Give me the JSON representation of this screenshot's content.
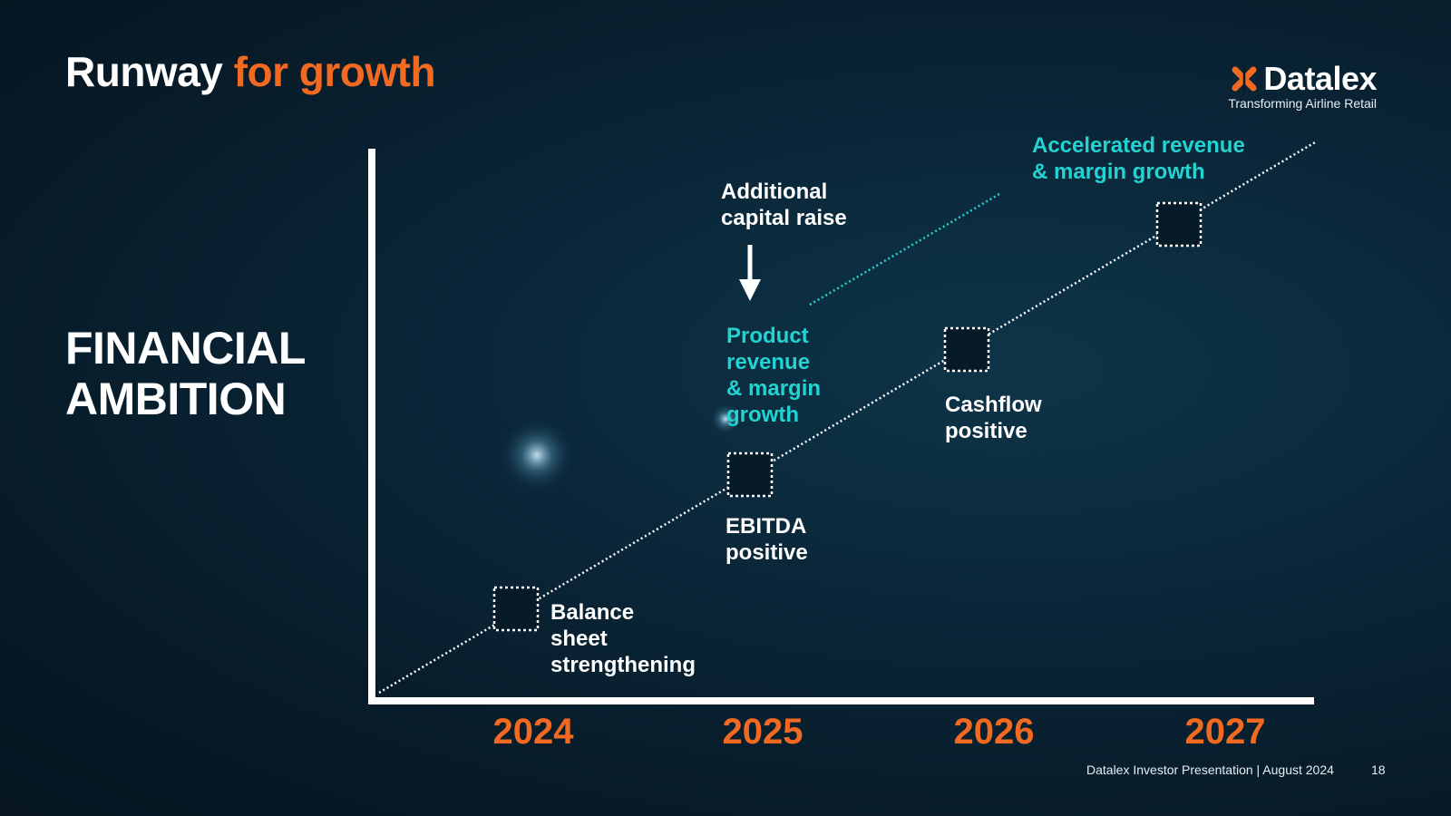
{
  "header": {
    "title_main": "Runway",
    "title_accent": "for growth"
  },
  "brand": {
    "name": "Datalex",
    "tagline": "Transforming Airline Retail",
    "accent_color": "#f26a21"
  },
  "side_heading": {
    "line1": "FINANCIAL",
    "line2": "AMBITION"
  },
  "timeline": {
    "years": [
      "2024",
      "2025",
      "2026",
      "2027"
    ],
    "milestones": [
      {
        "label": "Balance\nsheet\nstrengthening"
      },
      {
        "label": "EBITDA\npositive"
      },
      {
        "label": "Cashflow\npositive"
      }
    ],
    "capital_raise": "Additional\ncapital raise",
    "product_growth": "Product\nrevenue\n& margin\ngrowth",
    "accelerated_growth": "Accelerated revenue\n& margin growth",
    "colors": {
      "year": "#f26a21",
      "highlight": "#23d3d1",
      "line": "#ffffff"
    }
  },
  "footer": {
    "text": "Datalex Investor Presentation | August 2024",
    "page": "18"
  }
}
